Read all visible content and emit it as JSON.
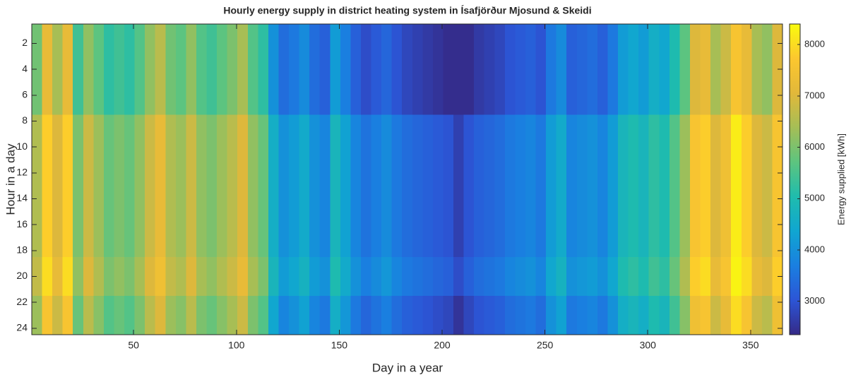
{
  "chart_data": {
    "type": "heatmap",
    "title": "Hourly energy supply in district heating system in Ísafjörður Mjosund & Skeidi",
    "xlabel": "Day in a year",
    "ylabel": "Hour in a day",
    "colorbar_label": "Energy supplied [kWh]",
    "x_edges": [
      0.5,
      5.5,
      10.5,
      15.5,
      20.5,
      25.5,
      30.5,
      35.5,
      40.5,
      45.5,
      50.5,
      55.5,
      60.5,
      65.5,
      70.5,
      75.5,
      80.5,
      85.5,
      90.5,
      95.5,
      100.5,
      105.5,
      110.5,
      115.5,
      120.5,
      125.5,
      130.5,
      135.5,
      140.5,
      145.5,
      150.5,
      155.5,
      160.5,
      165.5,
      170.5,
      175.5,
      180.5,
      185.5,
      190.5,
      195.5,
      200.5,
      205.5,
      210.5,
      215.5,
      220.5,
      225.5,
      230.5,
      235.5,
      240.5,
      245.5,
      250.5,
      255.5,
      260.5,
      265.5,
      270.5,
      275.5,
      280.5,
      285.5,
      290.5,
      295.5,
      300.5,
      305.5,
      310.5,
      315.5,
      320.5,
      325.5,
      330.5,
      335.5,
      340.5,
      345.5,
      350.5,
      355.5,
      360.5,
      365.5
    ],
    "y_edges": [
      0.5,
      7.5,
      18.5,
      21.5,
      24.5
    ],
    "values": [
      [
        5900,
        7200,
        6400,
        7200,
        5400,
        6200,
        5700,
        5200,
        5400,
        5200,
        5600,
        6200,
        6600,
        5900,
        5700,
        6200,
        5600,
        5400,
        5700,
        6000,
        6400,
        5600,
        5200,
        4000,
        3400,
        3600,
        3900,
        3400,
        3200,
        4200,
        3700,
        3200,
        2900,
        3100,
        3300,
        3000,
        2800,
        2700,
        2600,
        2500,
        2400,
        2400,
        2400,
        2600,
        2700,
        2800,
        3000,
        3100,
        3200,
        3000,
        3600,
        3900,
        3200,
        3300,
        3400,
        3200,
        3600,
        4200,
        4400,
        4200,
        4600,
        4400,
        5000,
        5700,
        7000,
        7200,
        6400,
        6800,
        7600,
        7200,
        6400,
        6200,
        7000
      ],
      [
        6500,
        7800,
        7000,
        7800,
        6000,
        6800,
        6300,
        5800,
        6000,
        5800,
        6200,
        6800,
        7200,
        6500,
        6300,
        6800,
        6200,
        6000,
        6300,
        6600,
        7000,
        6200,
        5800,
        4600,
        4000,
        4200,
        4500,
        4000,
        3800,
        4800,
        4300,
        3800,
        3500,
        3700,
        3900,
        3600,
        3400,
        3300,
        3200,
        3100,
        3000,
        2700,
        3000,
        3200,
        3300,
        3400,
        3600,
        3700,
        3800,
        3600,
        4200,
        4500,
        3800,
        3900,
        4000,
        3800,
        4200,
        4800,
        5000,
        4800,
        5200,
        5000,
        5600,
        6300,
        7600,
        7800,
        7000,
        7400,
        8200,
        7800,
        7000,
        6800,
        7600
      ],
      [
        6700,
        8000,
        7200,
        8000,
        6200,
        7000,
        6500,
        6000,
        6200,
        6000,
        6400,
        7000,
        7400,
        6700,
        6500,
        7000,
        6400,
        6200,
        6500,
        6800,
        7200,
        6400,
        6000,
        4800,
        4200,
        4400,
        4700,
        4200,
        4000,
        5000,
        4500,
        4000,
        3700,
        3900,
        4100,
        3800,
        3600,
        3500,
        3400,
        3300,
        3200,
        2900,
        3200,
        3400,
        3500,
        3600,
        3800,
        3900,
        4000,
        3800,
        4400,
        4700,
        4000,
        4100,
        4200,
        4000,
        4400,
        5000,
        5200,
        5000,
        5400,
        5200,
        5800,
        6500,
        7800,
        8000,
        7200,
        7600,
        8300,
        8000,
        7200,
        7000,
        7800
      ],
      [
        6300,
        7600,
        6800,
        7600,
        5800,
        6600,
        6100,
        5600,
        5800,
        5600,
        6000,
        6600,
        7000,
        6300,
        6100,
        6600,
        6000,
        5800,
        6100,
        6400,
        6800,
        6000,
        5600,
        4400,
        3800,
        4000,
        4300,
        3800,
        3600,
        4600,
        4100,
        3600,
        3300,
        3500,
        3700,
        3400,
        3200,
        3100,
        3000,
        2900,
        2800,
        2500,
        2800,
        3000,
        3100,
        3200,
        3400,
        3500,
        3600,
        3400,
        4000,
        4300,
        3600,
        3700,
        3800,
        3600,
        4000,
        4600,
        4800,
        4600,
        5000,
        4800,
        5400,
        6100,
        7400,
        7600,
        6800,
        7200,
        8000,
        7600,
        6800,
        6600,
        7400
      ]
    ],
    "xlim": [
      0.5,
      365.5
    ],
    "xticks": [
      50,
      100,
      150,
      200,
      250,
      300,
      350
    ],
    "ylim": [
      0.5,
      24.5
    ],
    "yticks": [
      2,
      4,
      6,
      8,
      10,
      12,
      14,
      16,
      18,
      20,
      22,
      24
    ],
    "y_reversed": true,
    "clim": [
      2350,
      8400
    ],
    "cticks": [
      3000,
      4000,
      5000,
      6000,
      7000,
      8000
    ],
    "colormap": [
      "#352a87",
      "#2c55d6",
      "#1a7fe0",
      "#10a6d1",
      "#1fbcad",
      "#5dc47f",
      "#a5be56",
      "#e2b83a",
      "#fcc72f",
      "#f9fb0e"
    ]
  }
}
